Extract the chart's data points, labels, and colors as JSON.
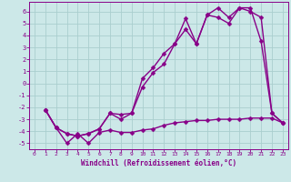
{
  "xlabel": "Windchill (Refroidissement éolien,°C)",
  "background_color": "#cce8e8",
  "grid_color": "#aacece",
  "line_color": "#880088",
  "xlim": [
    -0.5,
    23.5
  ],
  "ylim": [
    -5.5,
    6.8
  ],
  "xticks": [
    0,
    1,
    2,
    3,
    4,
    5,
    6,
    7,
    8,
    9,
    10,
    11,
    12,
    13,
    14,
    15,
    16,
    17,
    18,
    19,
    20,
    21,
    22,
    23
  ],
  "yticks": [
    -5,
    -4,
    -3,
    -2,
    -1,
    0,
    1,
    2,
    3,
    4,
    5,
    6
  ],
  "line1_x": [
    1,
    2,
    3,
    4,
    5,
    6,
    7,
    8,
    9,
    10,
    11,
    12,
    13,
    14,
    15,
    16,
    17,
    18,
    19,
    20,
    21,
    22,
    23
  ],
  "line1_y": [
    -2.2,
    -3.7,
    -5.0,
    -4.2,
    -5.0,
    -4.1,
    -3.9,
    -4.1,
    -4.1,
    -3.9,
    -3.8,
    -3.5,
    -3.3,
    -3.2,
    -3.1,
    -3.1,
    -3.0,
    -3.0,
    -3.0,
    -2.9,
    -2.9,
    -2.9,
    -3.3
  ],
  "line2_x": [
    1,
    2,
    3,
    4,
    5,
    6,
    7,
    8,
    9,
    10,
    11,
    12,
    13,
    14,
    15,
    16,
    17,
    18,
    19,
    20,
    21,
    22,
    23
  ],
  "line2_y": [
    -2.2,
    -3.7,
    -4.2,
    -4.4,
    -4.2,
    -3.8,
    -2.5,
    -3.0,
    -2.5,
    -0.3,
    0.9,
    1.6,
    3.3,
    5.4,
    3.3,
    5.7,
    6.3,
    5.5,
    6.3,
    6.3,
    3.5,
    -2.5,
    -3.3
  ],
  "line3_x": [
    1,
    2,
    3,
    4,
    5,
    6,
    7,
    8,
    9,
    10,
    11,
    12,
    13,
    14,
    15,
    16,
    17,
    18,
    19,
    20,
    21,
    22,
    23
  ],
  "line3_y": [
    -2.2,
    -3.7,
    -4.2,
    -4.4,
    -4.2,
    -3.8,
    -2.5,
    -2.6,
    -2.5,
    0.4,
    1.3,
    2.5,
    3.3,
    4.5,
    3.3,
    5.7,
    5.5,
    5.0,
    6.3,
    6.0,
    5.5,
    -2.5,
    -3.3
  ],
  "marker": "D",
  "markersize": 2.5,
  "linewidth": 1.0
}
